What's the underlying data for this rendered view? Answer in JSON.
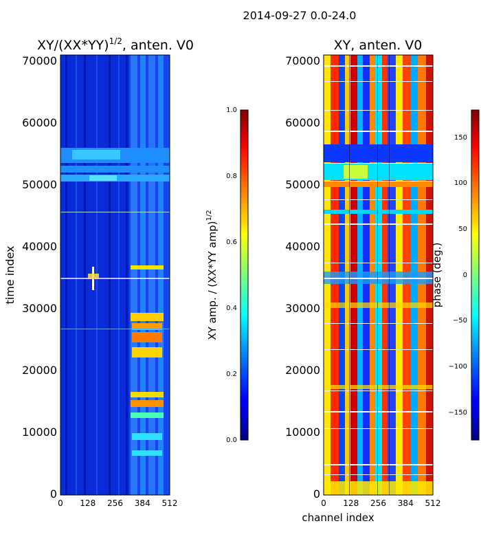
{
  "suptitle": "2014-09-27 0.0-24.0",
  "chart_data": [
    {
      "type": "heatmap",
      "title_main": "XY/(XX*YY)",
      "title_exponent": "1/2",
      "title_suffix": ", anten. V0",
      "xlabel": "",
      "ylabel": "time index",
      "xlim": [
        0,
        512
      ],
      "ylim": [
        0,
        71000
      ],
      "xticks": [
        "0",
        "128",
        "256",
        "384",
        "512"
      ],
      "xtick_values": [
        0,
        128,
        256,
        384,
        512
      ],
      "yticks": [
        "0",
        "10000",
        "20000",
        "30000",
        "40000",
        "50000",
        "60000",
        "70000"
      ],
      "ytick_values": [
        0,
        10000,
        20000,
        30000,
        40000,
        50000,
        60000,
        70000
      ],
      "colorbar": {
        "label_main": "XY amp. / (XX*YY amp)",
        "label_exponent": "1/2",
        "range": [
          0.0,
          1.0
        ],
        "ticks": [
          "0.0",
          "0.2",
          "0.4",
          "0.6",
          "0.8",
          "1.0"
        ],
        "tick_values": [
          0.0,
          0.2,
          0.4,
          0.6,
          0.8,
          1.0
        ],
        "colormap": "jet"
      }
    },
    {
      "type": "heatmap",
      "title": "XY, anten. V0",
      "xlabel": "channel index",
      "ylabel": "",
      "xlim": [
        0,
        512
      ],
      "ylim": [
        0,
        71000
      ],
      "xticks": [
        "0",
        "128",
        "256",
        "384",
        "512"
      ],
      "xtick_values": [
        0,
        128,
        256,
        384,
        512
      ],
      "yticks": [
        "0",
        "10000",
        "20000",
        "30000",
        "40000",
        "50000",
        "60000",
        "70000"
      ],
      "ytick_values": [
        0,
        10000,
        20000,
        30000,
        40000,
        50000,
        60000,
        70000
      ],
      "colorbar": {
        "label": "phase (deg.)",
        "range": [
          -180,
          180
        ],
        "ticks": [
          "−150",
          "−100",
          "−50",
          "0",
          "50",
          "100",
          "150"
        ],
        "tick_values": [
          -150,
          -100,
          -50,
          0,
          50,
          100,
          150
        ],
        "colormap": "jet"
      }
    }
  ]
}
